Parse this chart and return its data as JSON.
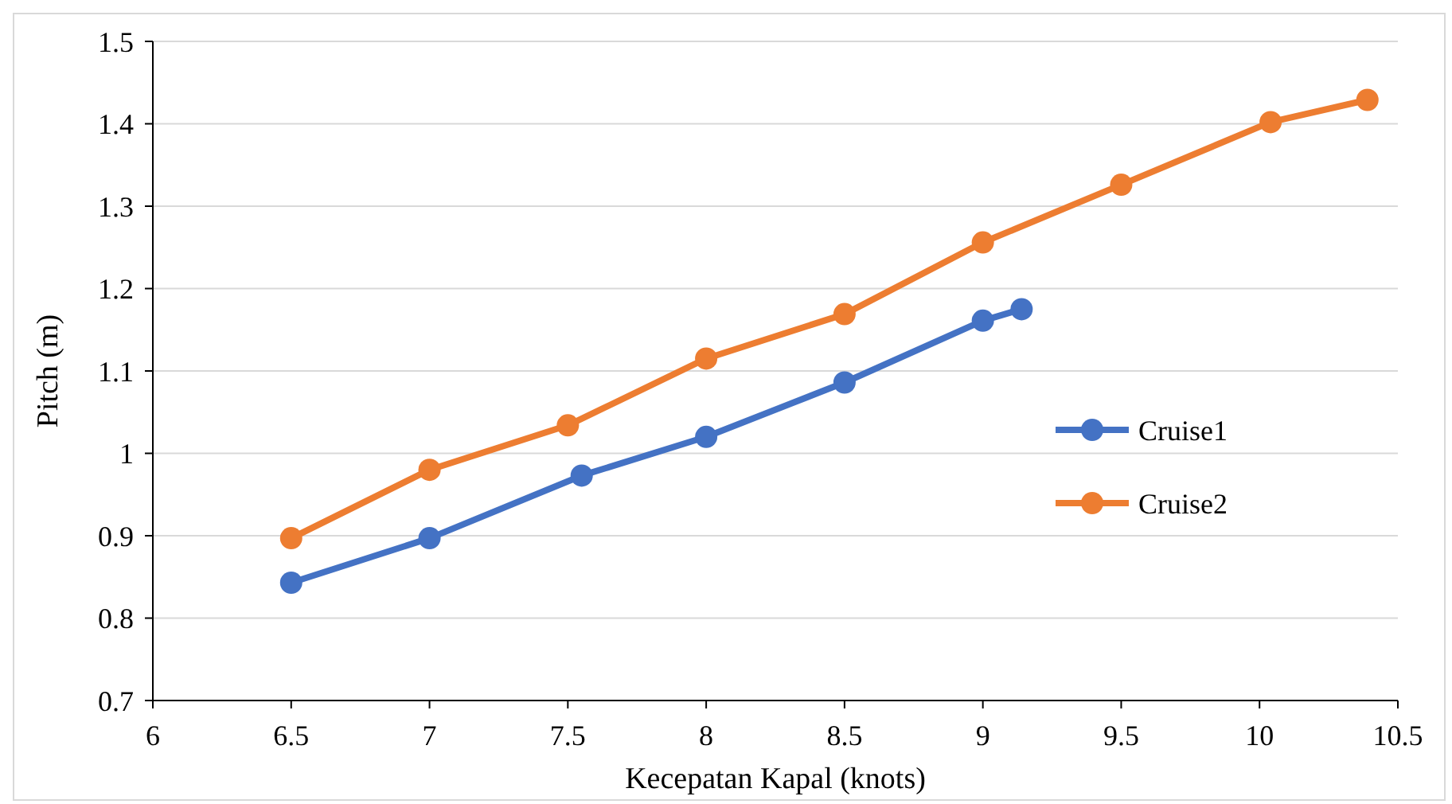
{
  "chart_data": {
    "type": "line",
    "xlabel": "Kecepatan Kapal (knots)",
    "ylabel": "Pitch (m)",
    "xlim": [
      6,
      10.5
    ],
    "xticks": [
      6,
      6.5,
      7,
      7.5,
      8,
      8.5,
      9,
      9.5,
      10,
      10.5
    ],
    "ylim": [
      0.7,
      1.5
    ],
    "yticks": [
      0.7,
      0.8,
      0.9,
      1,
      1.1,
      1.2,
      1.3,
      1.4,
      1.5
    ],
    "grid": "y",
    "legend": "right",
    "marker": "circle",
    "line_style": "solid",
    "series": [
      {
        "name": "Cruise1",
        "color": "#4472c4",
        "x": [
          6.5,
          7,
          7.55,
          8,
          8.5,
          9,
          9.14
        ],
        "values": [
          0.843,
          0.897,
          0.973,
          1.02,
          1.086,
          1.161,
          1.175
        ]
      },
      {
        "name": "Cruise2",
        "color": "#ed7d31",
        "x": [
          6.5,
          7,
          7.5,
          8,
          8.5,
          9,
          9.5,
          10.04,
          10.39
        ],
        "values": [
          0.897,
          0.98,
          1.034,
          1.115,
          1.169,
          1.256,
          1.326,
          1.402,
          1.429
        ]
      }
    ]
  }
}
